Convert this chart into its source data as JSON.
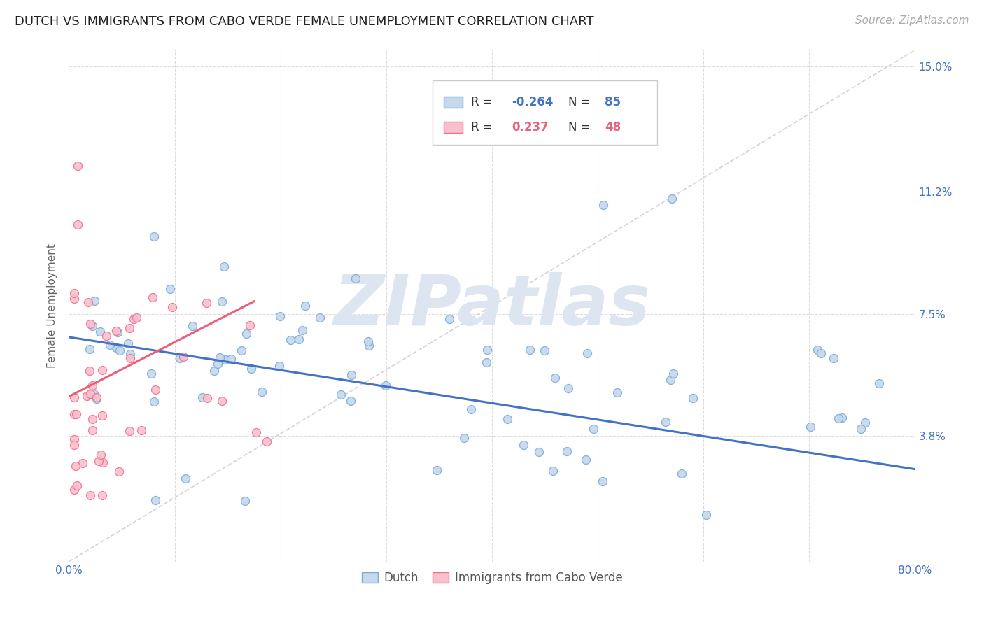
{
  "title": "DUTCH VS IMMIGRANTS FROM CABO VERDE FEMALE UNEMPLOYMENT CORRELATION CHART",
  "source": "Source: ZipAtlas.com",
  "ylabel": "Female Unemployment",
  "xlim": [
    0.0,
    0.8
  ],
  "ylim": [
    0.0,
    0.155
  ],
  "ytick_positions": [
    0.038,
    0.075,
    0.112,
    0.15
  ],
  "ytick_labels": [
    "3.8%",
    "7.5%",
    "11.2%",
    "15.0%"
  ],
  "xtick_positions": [
    0.0,
    0.1,
    0.2,
    0.3,
    0.4,
    0.5,
    0.6,
    0.7,
    0.8
  ],
  "xtick_labels": [
    "0.0%",
    "",
    "",
    "",
    "",
    "",
    "",
    "",
    "80.0%"
  ],
  "background_color": "#ffffff",
  "grid_color": "#dddddd",
  "dutch_fill": "#c5d8ee",
  "dutch_edge": "#7aadd4",
  "cabo_fill": "#f9c0cc",
  "cabo_edge": "#f07090",
  "dutch_line_color": "#4472c4",
  "cabo_line_color": "#e8607a",
  "dashed_line_color": "#ccccdd",
  "watermark_text": "ZIPatlas",
  "watermark_color": "#dde5f0",
  "legend_R_dutch": "-0.264",
  "legend_N_dutch": "85",
  "legend_R_cabo": "0.237",
  "legend_N_cabo": "48",
  "title_fontsize": 13,
  "source_fontsize": 11,
  "tick_fontsize": 11,
  "ylabel_fontsize": 11
}
